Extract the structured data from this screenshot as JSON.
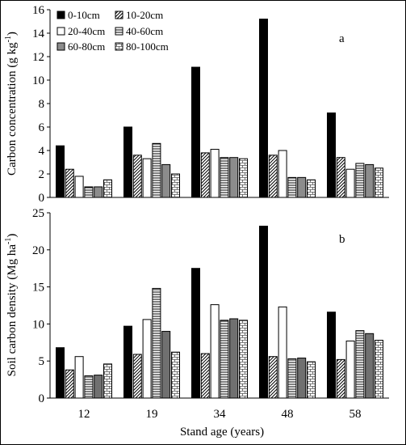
{
  "chart_data": [
    {
      "type": "bar",
      "panel_label": "a",
      "ylabel": "Carbon concentration (g kg",
      "ylabel_sup": "-1",
      "ylabel_close": ")",
      "xlabel": "",
      "ylim": [
        0,
        16
      ],
      "yticks": [
        "0",
        "2",
        "4",
        "6",
        "8",
        "10",
        "12",
        "14",
        "16"
      ],
      "categories": [
        "12",
        "19",
        "34",
        "48",
        "58"
      ],
      "legend_position": "top-left",
      "series": [
        {
          "name": "0-10cm",
          "fill": "solid-black",
          "values": [
            4.4,
            6.0,
            11.1,
            15.2,
            7.2
          ]
        },
        {
          "name": "10-20cm",
          "fill": "diagonal-hatch",
          "values": [
            2.4,
            3.6,
            3.8,
            3.6,
            3.4
          ]
        },
        {
          "name": "20-40cm",
          "fill": "white",
          "values": [
            1.8,
            3.3,
            4.1,
            4.0,
            2.4
          ]
        },
        {
          "name": "40-60cm",
          "fill": "horizontal-lines",
          "values": [
            0.9,
            4.6,
            3.4,
            1.7,
            2.9
          ]
        },
        {
          "name": "60-80cm",
          "fill": "solid-gray",
          "values": [
            0.9,
            2.8,
            3.4,
            1.7,
            2.8
          ]
        },
        {
          "name": "80-100cm",
          "fill": "brick-pattern",
          "values": [
            1.5,
            2.0,
            3.3,
            1.5,
            2.5
          ]
        }
      ]
    },
    {
      "type": "bar",
      "panel_label": "b",
      "ylabel": "Soil carbon density (Mg ha",
      "ylabel_sup": "-1",
      "ylabel_close": ")",
      "xlabel": "Stand age (years)",
      "ylim": [
        0,
        25
      ],
      "yticks": [
        "0",
        "5",
        "10",
        "15",
        "20",
        "25"
      ],
      "categories": [
        "12",
        "19",
        "34",
        "48",
        "58"
      ],
      "series": [
        {
          "name": "0-10cm",
          "fill": "solid-black",
          "values": [
            6.8,
            9.7,
            17.5,
            23.2,
            11.6
          ]
        },
        {
          "name": "10-20cm",
          "fill": "diagonal-hatch",
          "values": [
            3.8,
            5.9,
            6.0,
            5.6,
            5.2
          ]
        },
        {
          "name": "20-40cm",
          "fill": "white",
          "values": [
            5.6,
            10.6,
            12.6,
            12.3,
            7.7
          ]
        },
        {
          "name": "40-60cm",
          "fill": "horizontal-lines",
          "values": [
            3.0,
            14.8,
            10.5,
            5.3,
            9.1
          ]
        },
        {
          "name": "60-80cm",
          "fill": "solid-gray-dark",
          "values": [
            3.1,
            9.0,
            10.7,
            5.4,
            8.7
          ]
        },
        {
          "name": "80-100cm",
          "fill": "brick-pattern",
          "values": [
            4.6,
            6.2,
            10.5,
            4.9,
            7.8
          ]
        }
      ]
    }
  ],
  "colors": {
    "black": "#000000",
    "gray": "#8c8c8c",
    "gray_dark": "#707070",
    "white": "#ffffff"
  }
}
